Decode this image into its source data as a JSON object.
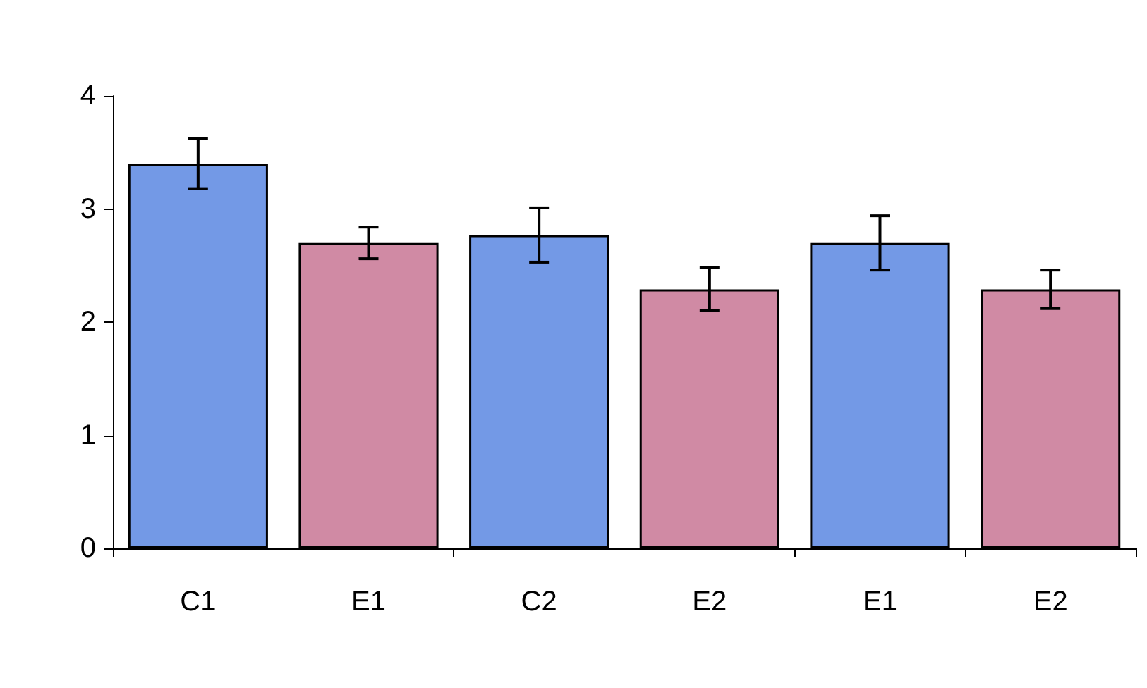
{
  "chart_data": {
    "type": "bar",
    "categories": [
      "C1",
      "E1",
      "C2",
      "E2",
      "E1",
      "E2"
    ],
    "values": [
      3.4,
      2.7,
      2.77,
      2.29,
      2.7,
      2.29
    ],
    "colors": [
      "#7399e6",
      "#d08aa4",
      "#7399e6",
      "#d08aa4",
      "#7399e6",
      "#d08aa4"
    ],
    "errors": [
      0.22,
      0.14,
      0.24,
      0.19,
      0.24,
      0.17
    ],
    "ylim": [
      0,
      4
    ],
    "yticks": [
      0,
      1,
      2,
      3,
      4
    ],
    "grid": false
  }
}
